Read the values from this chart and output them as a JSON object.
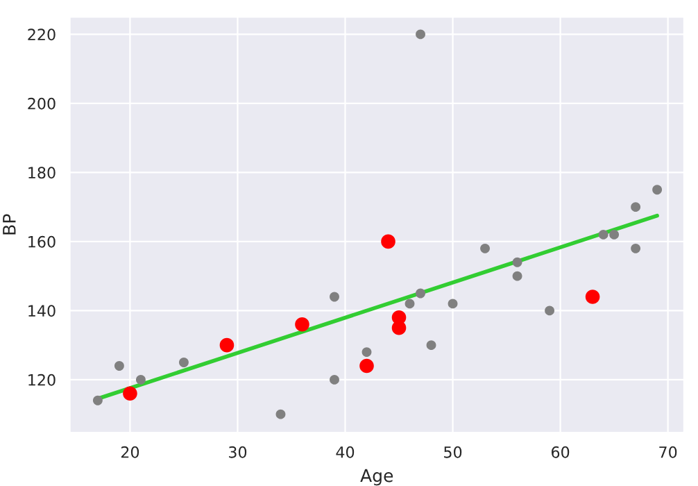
{
  "chart_data": {
    "type": "scatter",
    "xlabel": "Age",
    "ylabel": "BP",
    "xlim": [
      14.4,
      71.5
    ],
    "ylim": [
      104.7,
      225
    ],
    "xticks": [
      20,
      30,
      40,
      50,
      60,
      70
    ],
    "yticks": [
      120,
      140,
      160,
      180,
      200,
      220
    ],
    "grid": true,
    "series": [
      {
        "color": "#808080",
        "marker": "circle",
        "x": [
          17,
          19,
          21,
          25,
          34,
          39,
          39,
          42,
          46,
          47,
          47,
          48,
          50,
          53,
          56,
          56,
          59,
          64,
          65,
          67,
          67,
          69
        ],
        "values": [
          114,
          124,
          120,
          125,
          110,
          120,
          144,
          128,
          142,
          145,
          220,
          130,
          142,
          158,
          154,
          150,
          140,
          162,
          162,
          170,
          158,
          175
        ]
      },
      {
        "color": "#ff0000",
        "marker": "circle",
        "x": [
          20,
          29,
          36,
          42,
          44,
          45,
          45,
          63
        ],
        "values": [
          116,
          130,
          136,
          124,
          160,
          138,
          135,
          144
        ]
      },
      {
        "type": "line",
        "color": "#32cd32",
        "x": [
          17,
          69
        ],
        "values": [
          114.5,
          167.5
        ]
      }
    ]
  }
}
